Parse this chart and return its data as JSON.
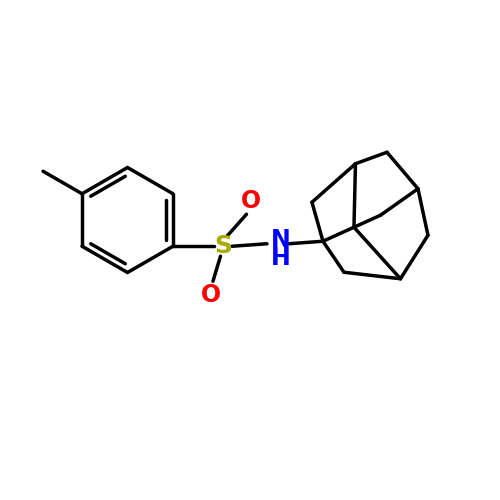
{
  "background_color": "#ffffff",
  "line_color": "#000000",
  "line_width": 2.5,
  "S_color": "#aaaa00",
  "O_color": "#ff0000",
  "N_color": "#0000ff",
  "font_size": 16,
  "figsize": [
    5.0,
    5.0
  ],
  "dpi": 100,
  "xlim": [
    0,
    10
  ],
  "ylim": [
    0,
    10
  ]
}
